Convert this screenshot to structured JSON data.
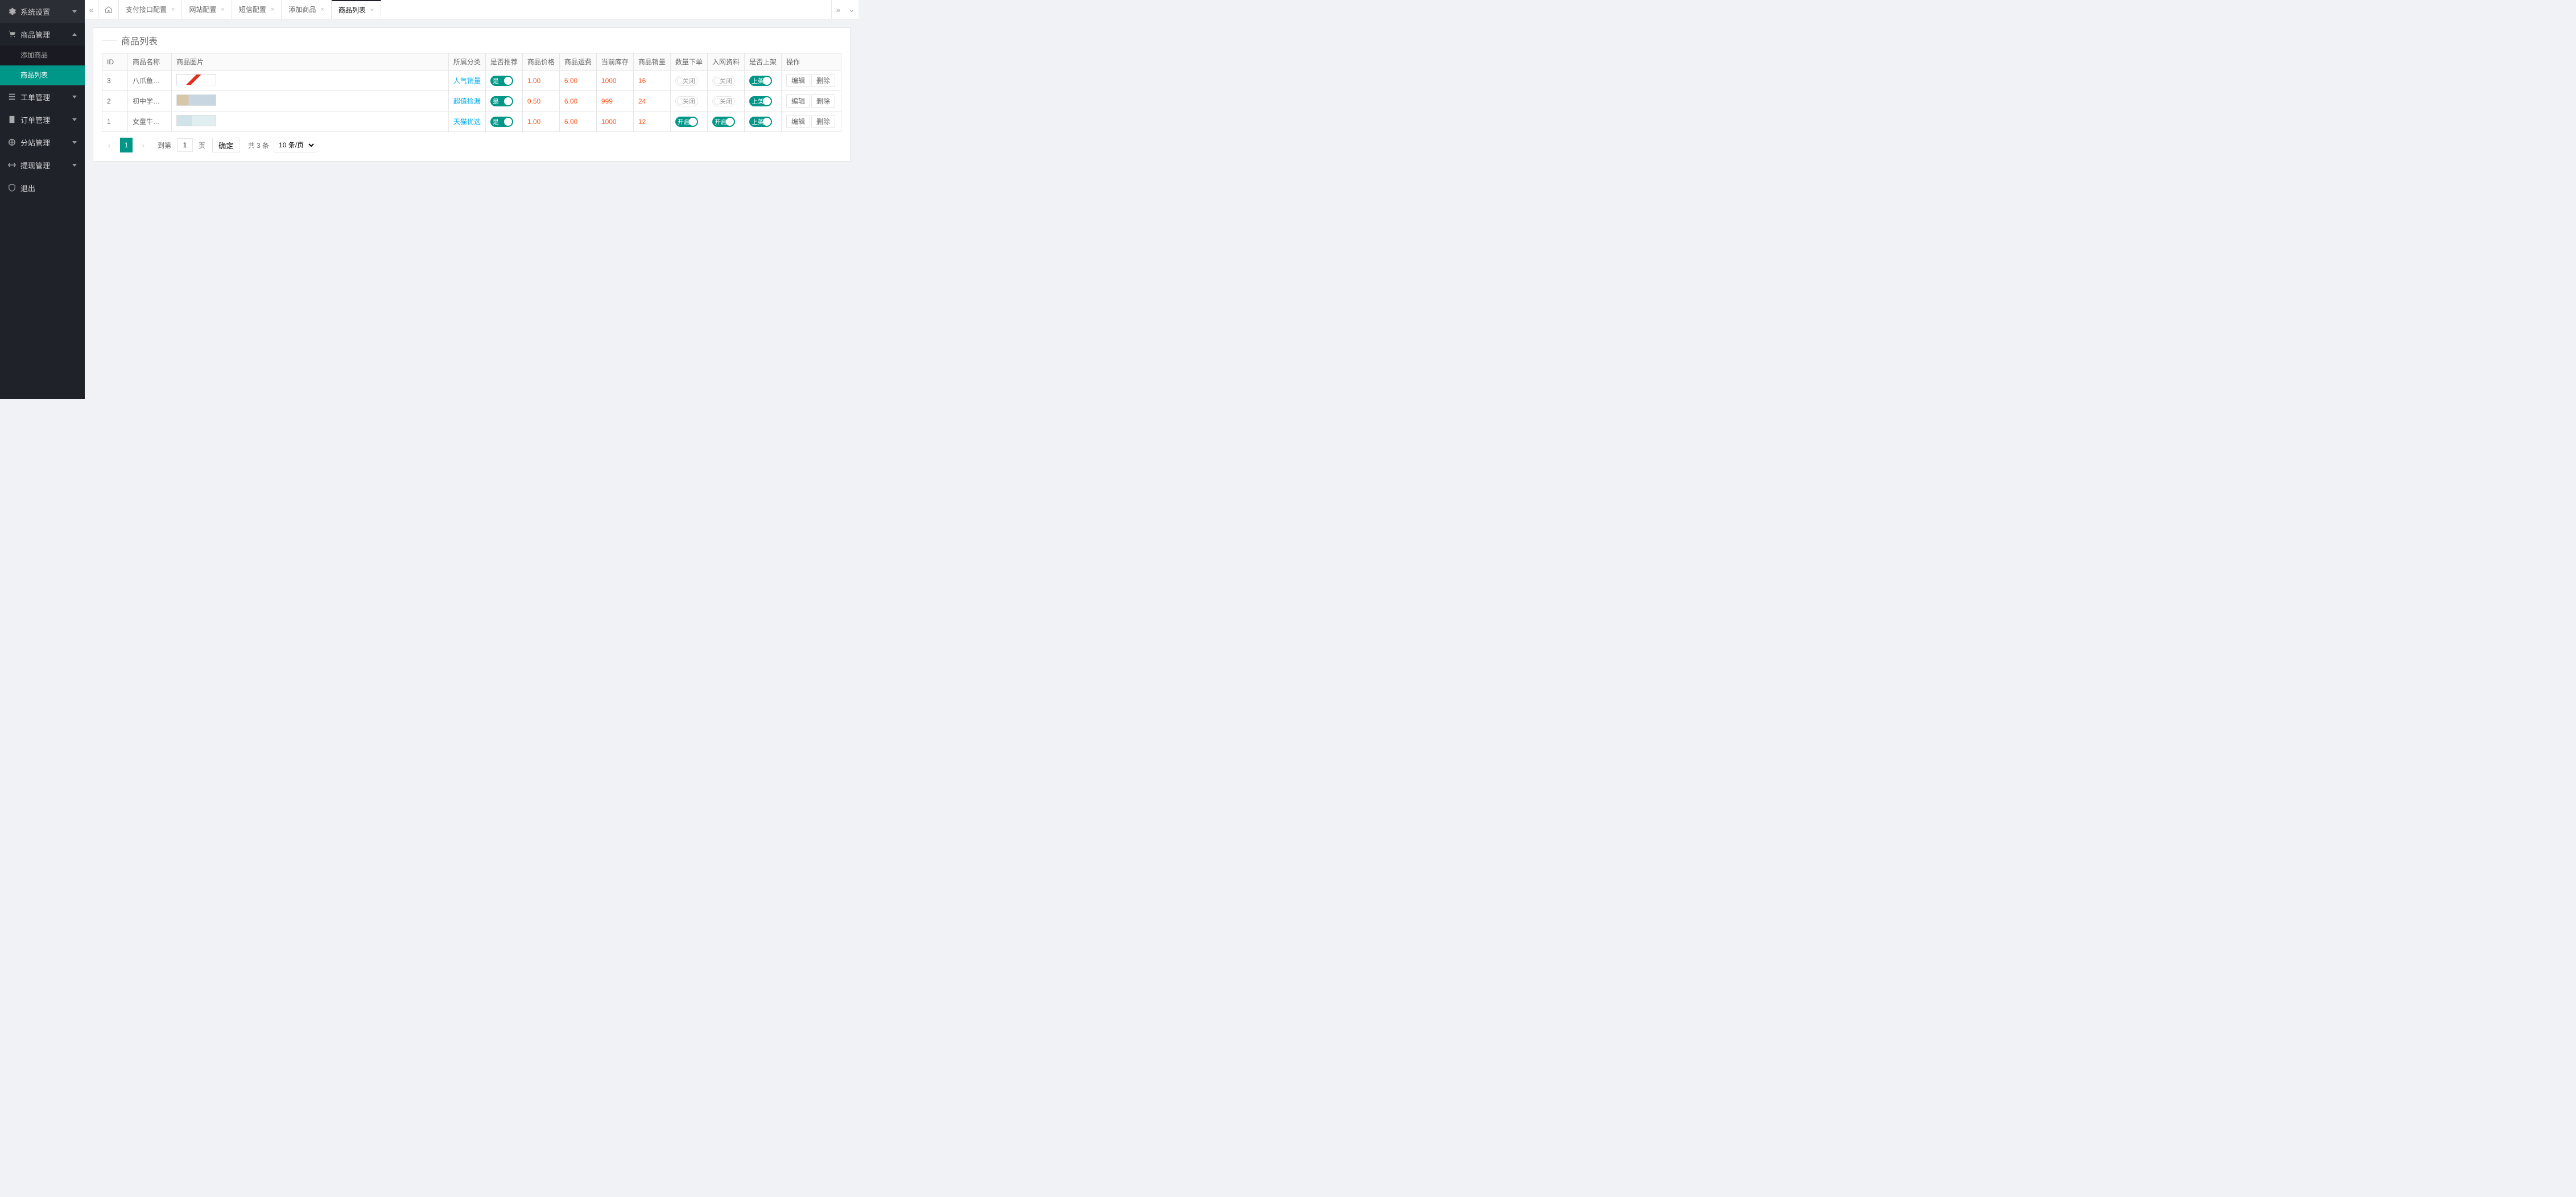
{
  "colors": {
    "accent": "#009688",
    "danger": "#ff5722",
    "link": "#01aaed",
    "sidebar_bg": "#20222a"
  },
  "sidebar": {
    "items": [
      {
        "icon": "gear",
        "label": "系统设置",
        "expanded": false
      },
      {
        "icon": "cart",
        "label": "商品管理",
        "expanded": true,
        "children": [
          {
            "label": "添加商品",
            "active": false
          },
          {
            "label": "商品列表",
            "active": true
          }
        ]
      },
      {
        "icon": "list",
        "label": "工单管理",
        "expanded": false
      },
      {
        "icon": "order",
        "label": "订单管理",
        "expanded": false
      },
      {
        "icon": "site",
        "label": "分站管理",
        "expanded": false
      },
      {
        "icon": "withdraw",
        "label": "提现管理",
        "expanded": false
      },
      {
        "icon": "shield",
        "label": "退出",
        "expanded": null
      }
    ]
  },
  "tabs": {
    "items": [
      {
        "label": "支付接口配置",
        "active": false
      },
      {
        "label": "网站配置",
        "active": false
      },
      {
        "label": "短信配置",
        "active": false
      },
      {
        "label": "添加商品",
        "active": false
      },
      {
        "label": "商品列表",
        "active": true
      }
    ]
  },
  "page": {
    "title": "商品列表"
  },
  "table": {
    "columns": [
      "ID",
      "商品名称",
      "商品图片",
      "所属分类",
      "是否推荐",
      "商品价格",
      "商品运费",
      "当前库存",
      "商品销量",
      "数量下单",
      "入网资料",
      "是否上架",
      "操作"
    ],
    "switch_labels": {
      "yes": "是",
      "open": "开启",
      "close": "关闭",
      "shelf_on": "上架"
    },
    "rows": [
      {
        "id": "3",
        "name": "八爪鱼大爆…",
        "category": "人气销量",
        "recommend": "是",
        "price": "1.00",
        "shipping": "6.00",
        "stock": "1000",
        "sales": "16",
        "qty_order": "关闭",
        "netinfo": "关闭",
        "on_shelf": "上架"
      },
      {
        "id": "2",
        "name": "初中学生夏…",
        "category": "超值捡漏",
        "recommend": "是",
        "price": "0.50",
        "shipping": "6.00",
        "stock": "999",
        "sales": "24",
        "qty_order": "关闭",
        "netinfo": "关闭",
        "on_shelf": "上架"
      },
      {
        "id": "1",
        "name": "女童牛仔长…",
        "category": "天猫优选",
        "recommend": "是",
        "price": "1.00",
        "shipping": "6.00",
        "stock": "1000",
        "sales": "12",
        "qty_order": "开启",
        "netinfo": "开启",
        "on_shelf": "上架"
      }
    ],
    "actions": {
      "edit": "编辑",
      "delete": "删除"
    }
  },
  "pager": {
    "current": "1",
    "goto_label": "到第",
    "goto_value": "1",
    "page_suffix": "页",
    "confirm": "确定",
    "total_text": "共 3 条",
    "page_size_label": "10 条/页"
  }
}
